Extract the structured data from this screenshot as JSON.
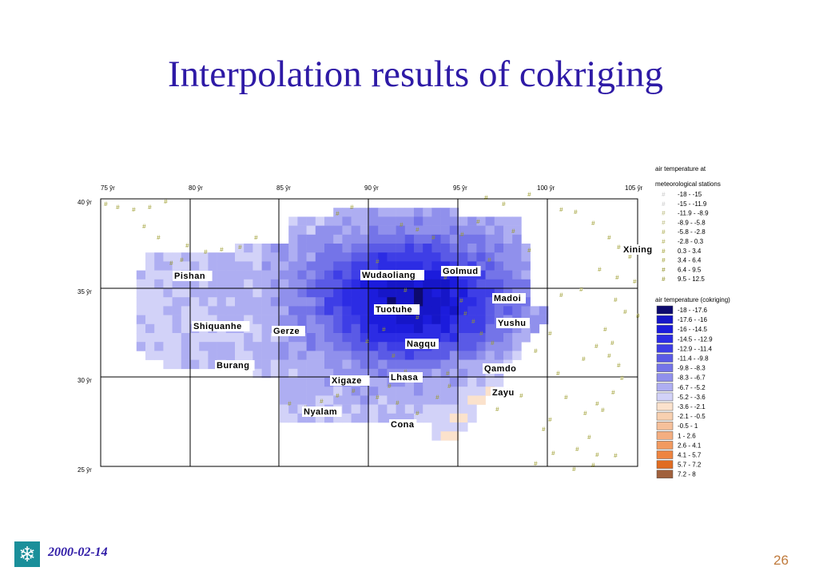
{
  "slide": {
    "title": "Interpolation results of cokriging",
    "date": "2000-02-14",
    "page_number": "26",
    "logo_icon": "snowflake-icon"
  },
  "map": {
    "lon_labels": [
      "75 ŷr",
      "80 ŷr",
      "85 ŷr",
      "90 ŷr",
      "95 ŷr",
      "100 ŷr",
      "105 ŷr"
    ],
    "lat_labels": [
      "40 ŷr",
      "35 ŷr",
      "30 ŷr",
      "25 ŷr"
    ],
    "cities": [
      "Xining",
      "Pishan",
      "Wudaoliang",
      "Golmud",
      "Madoi",
      "Tuotuhe",
      "Yushu",
      "Shiquanhe",
      "Gerze",
      "Nagqu",
      "Burang",
      "Qamdo",
      "Xigaze",
      "Lhasa",
      "Zayu",
      "Nyalam",
      "Cona"
    ],
    "station_symbol": "#"
  },
  "legend": {
    "stations_title_line1": "air temperature at",
    "stations_title_line2": "meteorological stations",
    "stations": [
      {
        "label": "-18 - -15",
        "color": "#c8c8c8"
      },
      {
        "label": "-15 - -11.9",
        "color": "#c8c8c8"
      },
      {
        "label": "-11.9 - -8.9",
        "color": "#b8b87a"
      },
      {
        "label": "-8.9 - -5.8",
        "color": "#b8b87a"
      },
      {
        "label": "-5.8 - -2.8",
        "color": "#a8a84a"
      },
      {
        "label": "-2.8 - 0.3",
        "color": "#a8a84a"
      },
      {
        "label": "0.3 - 3.4",
        "color": "#9a9a2a"
      },
      {
        "label": "3.4 - 6.4",
        "color": "#9a9a2a"
      },
      {
        "label": "6.4 - 9.5",
        "color": "#8a8a1a"
      },
      {
        "label": "9.5 - 12.5",
        "color": "#8a8a1a"
      }
    ],
    "cokriging_title": "air temperature (cokriging)",
    "classes": [
      {
        "label": "-18 - -17.6",
        "color": "#0d0a6e"
      },
      {
        "label": "-17.6 - -16",
        "color": "#1616c8"
      },
      {
        "label": "-16 - -14.5",
        "color": "#1c1cdc"
      },
      {
        "label": "-14.5 - -12.9",
        "color": "#2c2ce4"
      },
      {
        "label": "-12.9 - -11.4",
        "color": "#3e3ee6"
      },
      {
        "label": "-11.4 - -9.8",
        "color": "#5a5ae6"
      },
      {
        "label": "-9.8 - -8.3",
        "color": "#7474e8"
      },
      {
        "label": "-8.3 - -6.7",
        "color": "#9090ec"
      },
      {
        "label": "-6.7 - -5.2",
        "color": "#aeaef2"
      },
      {
        "label": "-5.2 - -3.6",
        "color": "#d2d2f8"
      },
      {
        "label": "-3.6 - -2.1",
        "color": "#fbe2cc"
      },
      {
        "label": "-2.1 - -0.5",
        "color": "#f8d0b0"
      },
      {
        "label": "-0.5 - 1",
        "color": "#f6c09a"
      },
      {
        "label": "1 - 2.6",
        "color": "#f4ae80"
      },
      {
        "label": "2.6 - 4.1",
        "color": "#f29a60"
      },
      {
        "label": "4.1 - 5.7",
        "color": "#ee8440"
      },
      {
        "label": "5.7 - 7.2",
        "color": "#e06c22"
      },
      {
        "label": "7.2 - 8",
        "color": "#a0603c"
      }
    ]
  }
}
